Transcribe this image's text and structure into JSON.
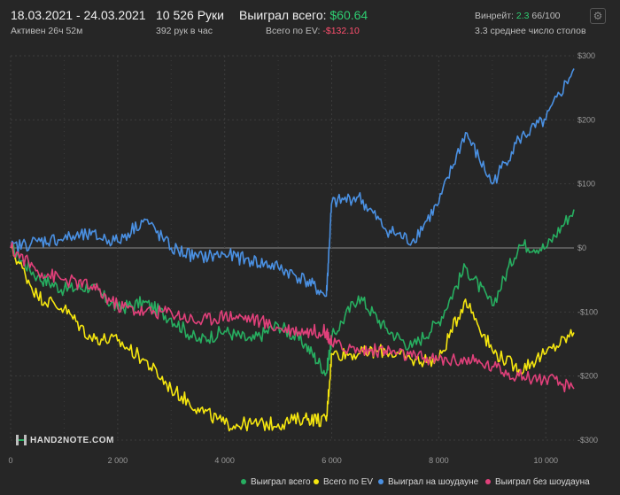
{
  "header": {
    "date_range": "18.03.2021 - 24.03.2021",
    "active": "Активен 26ч 52м",
    "hands": "10 526 Руки",
    "hands_rate": "392 рук в час",
    "won_total_label": "Выиграл всего:",
    "won_total_value": "$60.64",
    "ev_label": "Всего по EV:",
    "ev_value": "-$132.10",
    "winrate_label": "Винрейт:",
    "winrate_value": "2.3",
    "winrate_rest": "66/100",
    "tables": "3.3 среднее число столов"
  },
  "logo": {
    "text": "HAND2NOTE.COM"
  },
  "colors": {
    "won": "#27ae60",
    "ev": "#f5e60f",
    "showdown": "#4a90e2",
    "nonshowdown": "#e0407a",
    "grid": "#3c3c3c",
    "zero": "#8a8a8a",
    "axis_text": "#9a9a9a"
  },
  "chart_data": {
    "type": "line",
    "xlabel": "",
    "ylabel": "",
    "xlim": [
      0,
      10526
    ],
    "ylim": [
      -300,
      300
    ],
    "x_ticks": [
      0,
      2000,
      4000,
      6000,
      8000,
      10000
    ],
    "x_tick_labels": [
      "0",
      "2 000",
      "4 000",
      "6 000",
      "8 000",
      "10 000"
    ],
    "y_ticks": [
      300,
      200,
      100,
      0,
      -100,
      -200,
      -300
    ],
    "y_tick_labels": [
      "$300",
      "$200",
      "$100",
      "$0",
      "-$100",
      "-$200",
      "-$300"
    ],
    "grid": true,
    "legend_position": "bottom-right",
    "x": [
      0,
      500,
      1000,
      1500,
      2000,
      2500,
      3000,
      3500,
      4000,
      4500,
      5000,
      5500,
      5900,
      6000,
      6500,
      7000,
      7500,
      8000,
      8500,
      9000,
      9500,
      10000,
      10526
    ],
    "series": [
      {
        "name": "Выиграл всего",
        "color_key": "won",
        "values": [
          0,
          -45,
          -65,
          -60,
          -95,
          -85,
          -110,
          -145,
          -130,
          -145,
          -120,
          -150,
          -195,
          -140,
          -75,
          -125,
          -155,
          -115,
          -30,
          -90,
          5,
          0,
          60
        ]
      },
      {
        "name": "Всего по EV",
        "color_key": "ev",
        "values": [
          0,
          -75,
          -95,
          -140,
          -145,
          -175,
          -220,
          -250,
          -275,
          -275,
          -275,
          -265,
          -270,
          -165,
          -165,
          -160,
          -175,
          -175,
          -80,
          -160,
          -190,
          -165,
          -132
        ]
      },
      {
        "name": "Выиграл на шоудауне",
        "color_key": "showdown",
        "values": [
          0,
          10,
          15,
          20,
          10,
          45,
          0,
          -15,
          -10,
          -20,
          -30,
          -50,
          -75,
          70,
          80,
          30,
          10,
          70,
          180,
          100,
          170,
          200,
          280
        ]
      },
      {
        "name": "Выиграл без шоудауна",
        "color_key": "nonshowdown",
        "values": [
          0,
          -35,
          -50,
          -60,
          -90,
          -100,
          -100,
          -115,
          -105,
          -110,
          -125,
          -130,
          -130,
          -150,
          -160,
          -160,
          -170,
          -175,
          -175,
          -185,
          -200,
          -205,
          -220
        ]
      }
    ]
  }
}
